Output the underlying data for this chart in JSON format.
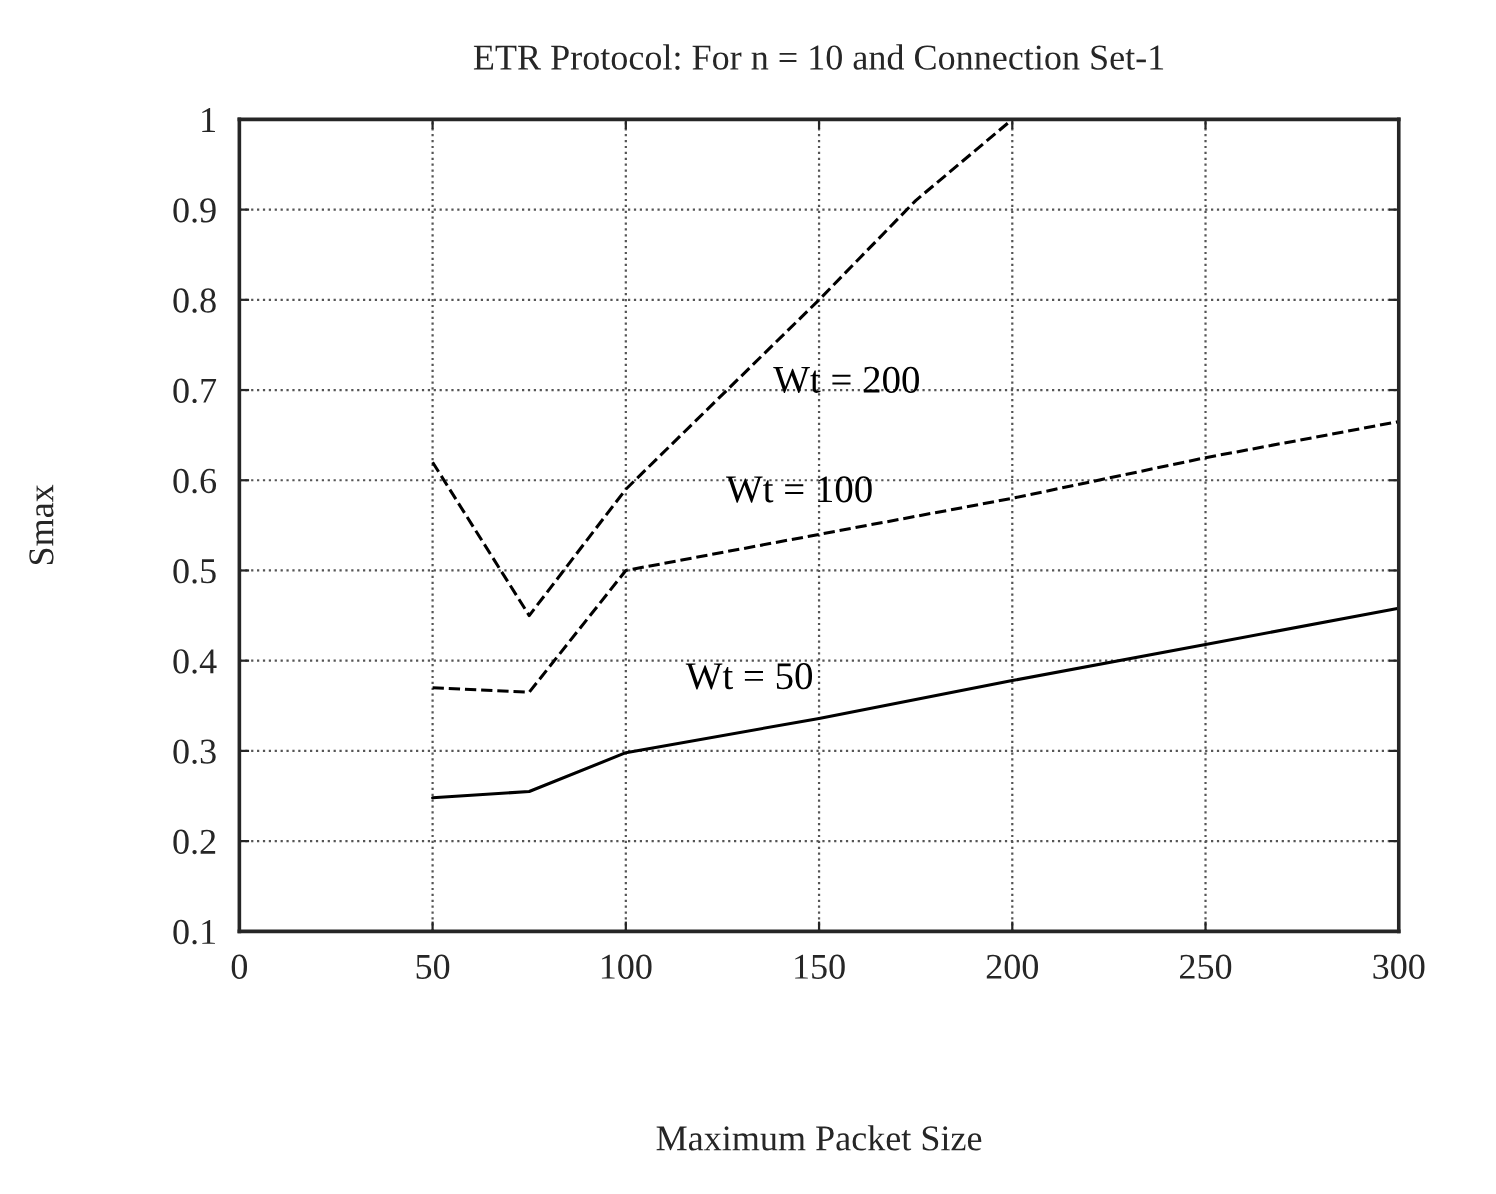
{
  "chart_data": {
    "type": "line",
    "title": "ETR Protocol: For n = 10 and Connection Set-1",
    "xlabel": "Maximum Packet Size",
    "ylabel": "Smax",
    "xlim": [
      0,
      300
    ],
    "xticks": [
      0,
      50,
      100,
      150,
      200,
      250,
      300
    ],
    "ylim": [
      0.1,
      1
    ],
    "yticks": [
      0.1,
      0.2,
      0.3,
      0.4,
      0.5,
      0.6,
      0.7,
      0.8,
      0.9,
      1
    ],
    "grid": true,
    "marker": "none",
    "series": [
      {
        "name": "Wt = 200",
        "color": "#000000",
        "line_style": "dashed",
        "x": [
          50,
          75,
          100,
          150,
          175,
          200
        ],
        "values": [
          0.62,
          0.45,
          0.59,
          0.8,
          0.91,
          1.0
        ]
      },
      {
        "name": "Wt = 100",
        "color": "#000000",
        "line_style": "dashed",
        "x": [
          50,
          75,
          100,
          150,
          200,
          250,
          300
        ],
        "values": [
          0.37,
          0.365,
          0.5,
          0.54,
          0.58,
          0.625,
          0.665
        ]
      },
      {
        "name": "Wt = 50",
        "color": "#000000",
        "line_style": "solid",
        "x": [
          50,
          75,
          100,
          150,
          200,
          250,
          300
        ],
        "values": [
          0.248,
          0.255,
          0.298,
          0.336,
          0.378,
          0.418,
          0.458
        ]
      }
    ]
  }
}
